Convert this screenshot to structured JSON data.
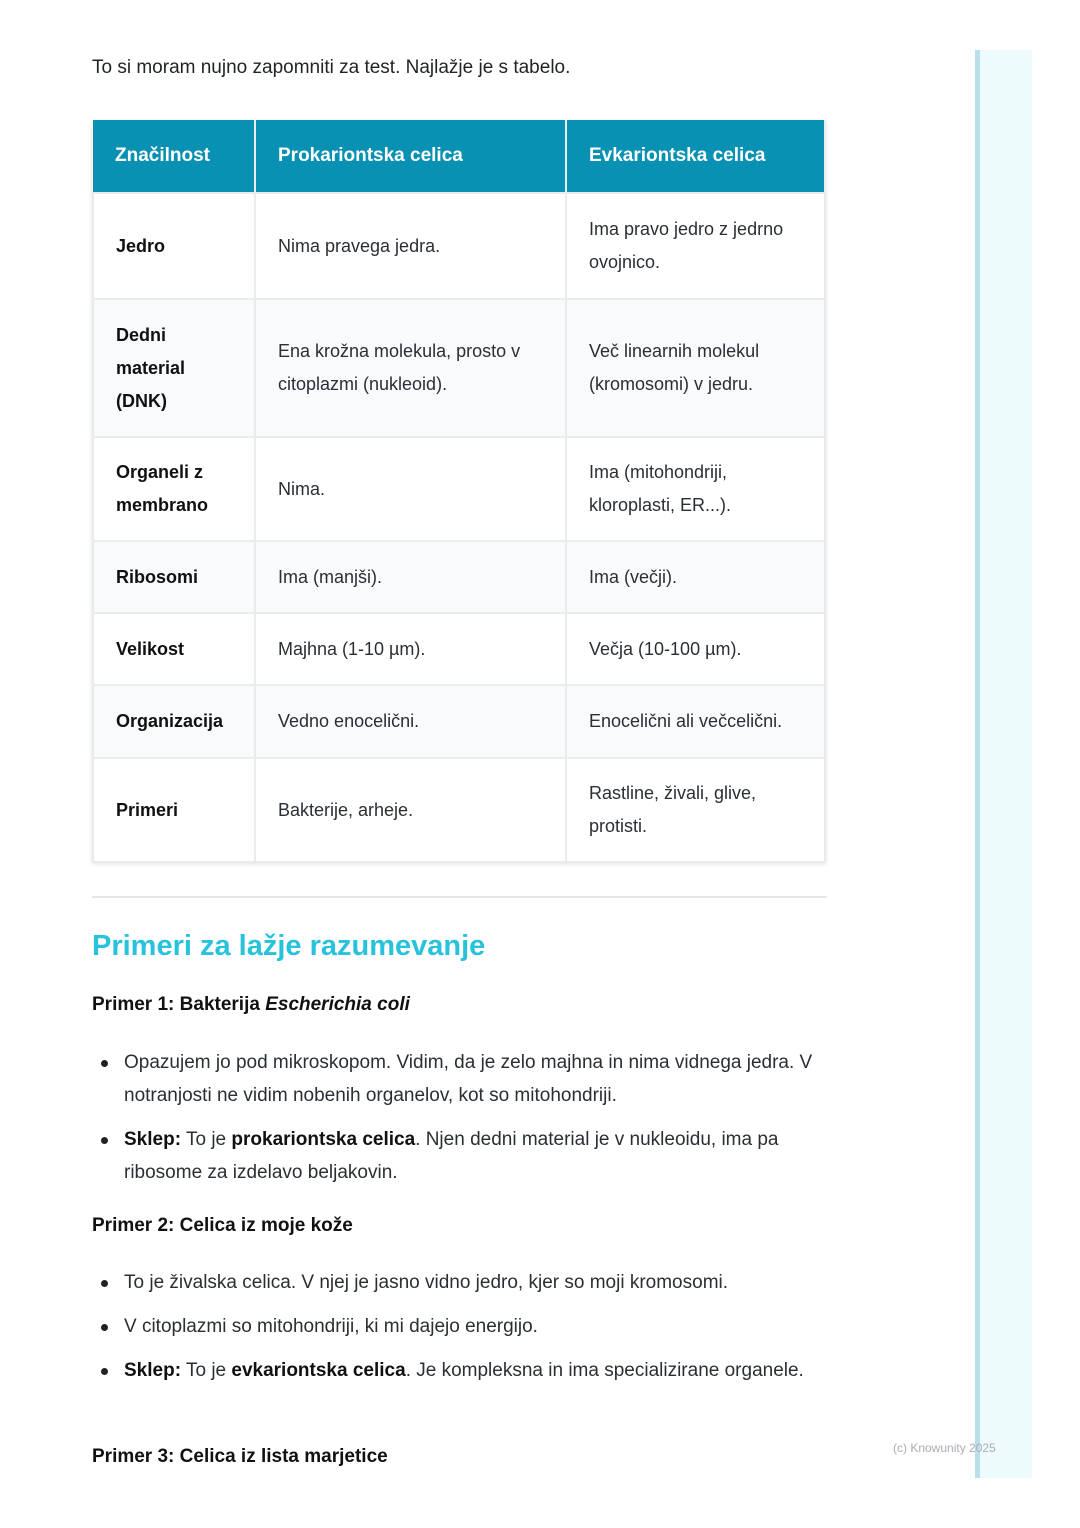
{
  "intro": "To si moram nujno zapomniti za test. Najlažje je s tabelo.",
  "table": {
    "headers": [
      "Značilnost",
      "Prokariontska celica",
      "Evkariontska celica"
    ],
    "rows": [
      [
        "Jedro",
        "Nima pravega jedra.",
        "Ima pravo jedro z jedrno ovojnico."
      ],
      [
        "Dedni material (DNK)",
        "Ena krožna molekula, prosto v citoplazmi (nukleoid).",
        "Več linearnih molekul (kromosomi) v jedru."
      ],
      [
        "Organeli z membrano",
        "Nima.",
        "Ima (mitohondriji, kloroplasti, ER...)."
      ],
      [
        "Ribosomi",
        "Ima (manjši).",
        "Ima (večji)."
      ],
      [
        "Velikost",
        "Majhna (1-10 µm).",
        "Večja (10-100 µm)."
      ],
      [
        "Organizacija",
        "Vedno enocelični.",
        "Enocelični ali večcelični."
      ],
      [
        "Primeri",
        "Bakterije, arheje.",
        "Rastline, živali, glive, protisti."
      ]
    ]
  },
  "section_title": "Primeri za lažje razumevanje",
  "ex1": {
    "title": "Primer 1: Bakterija ",
    "title_italic": "Escherichia coli",
    "b1": "Opazujem jo pod mikroskopom. Vidim, da je zelo majhna in nima vidnega jedra. V notranjosti ne vidim nobenih organelov, kot so mitohondriji.",
    "b2_label": "Sklep:",
    "b2_a": " To je ",
    "b2_bold": "prokariontska celica",
    "b2_b": ". Njen dedni material je v nukleoidu, ima pa ribosome za izdelavo beljakovin."
  },
  "ex2": {
    "title": "Primer 2: Celica iz moje kože",
    "b1": "To je živalska celica. V njej je jasno vidno jedro, kjer so moji kromosomi.",
    "b2": "V citoplazmi so mitohondriji, ki mi dajejo energijo.",
    "b3_label": "Sklep:",
    "b3_a": " To je ",
    "b3_bold": "evkariontska celica",
    "b3_b": ". Je kompleksna in ima specializirane organele."
  },
  "ex3": {
    "title": "Primer 3: Celica iz lista marjetice"
  },
  "footer": "(c) Knowunity 2025",
  "colors": {
    "header": "#0891b2",
    "heading": "#29c2dc"
  }
}
